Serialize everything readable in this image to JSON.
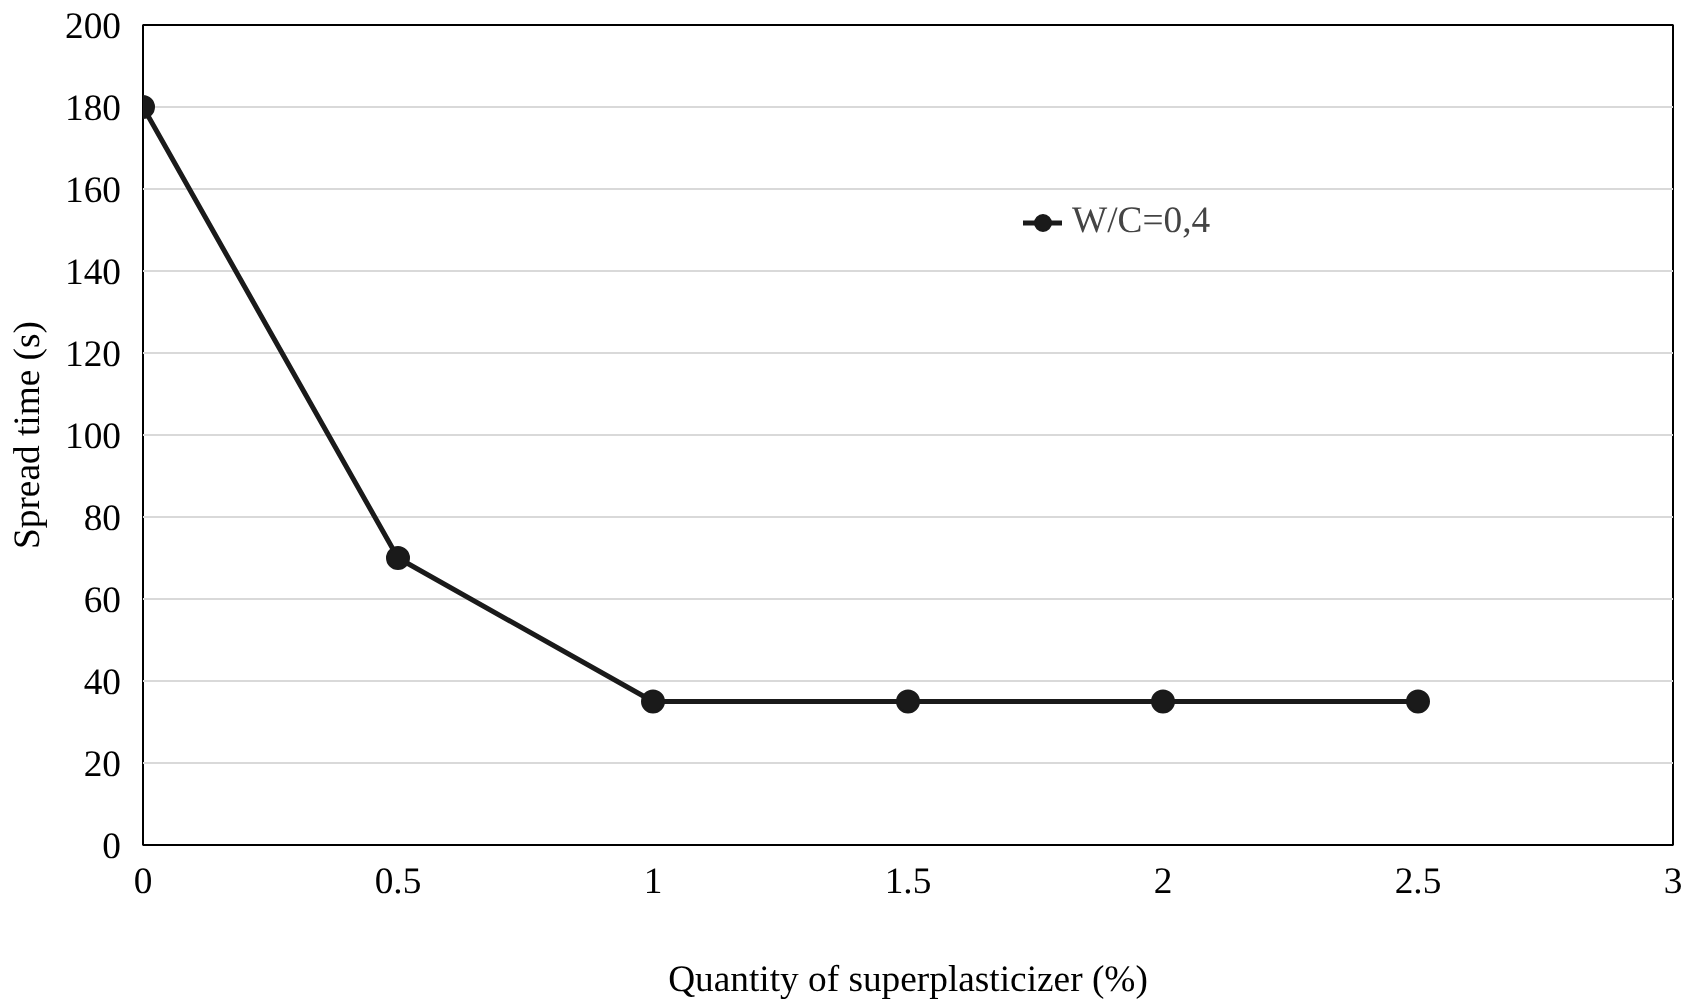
{
  "chart_data": {
    "type": "line",
    "xlabel": "Quantity of superplasticizer (%)",
    "ylabel": "Spread time (s)",
    "x": [
      0,
      0.5,
      1,
      1.5,
      2,
      2.5
    ],
    "series": [
      {
        "name": "W/C=0,4",
        "color": "#1a1a1a",
        "values": [
          180,
          70,
          35,
          35,
          35,
          35
        ]
      }
    ],
    "xlim": [
      0,
      3
    ],
    "xticks": [
      0,
      0.5,
      1,
      1.5,
      2,
      2.5,
      3
    ],
    "ylim": [
      0,
      200
    ],
    "yticks": [
      0,
      20,
      40,
      60,
      80,
      100,
      120,
      140,
      160,
      180,
      200
    ],
    "grid": "y",
    "legend": "top right",
    "marker": "circle",
    "line_style": "solid"
  }
}
